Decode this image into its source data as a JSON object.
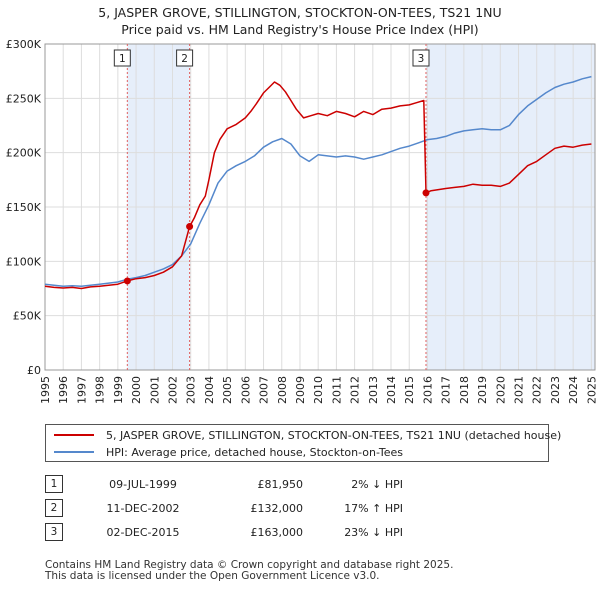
{
  "title": {
    "line1": "5, JASPER GROVE, STILLINGTON, STOCKTON-ON-TEES, TS21 1NU",
    "line2": "Price paid vs. HM Land Registry's House Price Index (HPI)"
  },
  "chart_data": {
    "type": "line",
    "title": "5, JASPER GROVE, STILLINGTON, STOCKTON-ON-TEES, TS21 1NU — Price paid vs. HM Land Registry's House Price Index (HPI)",
    "xlabel": "",
    "ylabel": "",
    "xlim": [
      1995,
      2025.2
    ],
    "ylim": [
      0,
      300000
    ],
    "y_ticks": [
      0,
      50000,
      100000,
      150000,
      200000,
      250000,
      300000
    ],
    "y_tick_labels": [
      "£0",
      "£50K",
      "£100K",
      "£150K",
      "£200K",
      "£250K",
      "£300K"
    ],
    "x_ticks": [
      1995,
      1996,
      1997,
      1998,
      1999,
      2000,
      2001,
      2002,
      2003,
      2004,
      2005,
      2006,
      2007,
      2008,
      2009,
      2010,
      2011,
      2012,
      2013,
      2014,
      2015,
      2016,
      2017,
      2018,
      2019,
      2020,
      2021,
      2022,
      2023,
      2024,
      2025
    ],
    "grid": true,
    "colors": {
      "property": "#cc0000",
      "hpi": "#5588cc",
      "shade": "#e6eefa",
      "grid": "#dddddd",
      "marker_line": "#e06060"
    },
    "shaded_ranges": [
      [
        1999.52,
        2002.94
      ],
      [
        2015.92,
        2025.2
      ]
    ],
    "series": [
      {
        "name": "5, JASPER GROVE, STILLINGTON, STOCKTON-ON-TEES, TS21 1NU (detached house)",
        "x": [
          1995,
          1995.5,
          1996,
          1996.5,
          1997,
          1997.5,
          1998,
          1998.5,
          1999,
          1999.52,
          2000,
          2000.5,
          2001,
          2001.5,
          2002,
          2002.5,
          2002.94,
          2003.2,
          2003.5,
          2003.8,
          2004,
          2004.3,
          2004.6,
          2005,
          2005.5,
          2006,
          2006.3,
          2006.6,
          2007,
          2007.3,
          2007.6,
          2007.9,
          2008.2,
          2008.5,
          2008.8,
          2009.2,
          2009.6,
          2010,
          2010.5,
          2011,
          2011.5,
          2012,
          2012.5,
          2013,
          2013.5,
          2014,
          2014.5,
          2015,
          2015.4,
          2015.8,
          2015.92,
          2016.2,
          2016.6,
          2017,
          2017.5,
          2018,
          2018.5,
          2019,
          2019.5,
          2020,
          2020.5,
          2021,
          2021.5,
          2022,
          2022.5,
          2023,
          2023.5,
          2024,
          2024.5,
          2025
        ],
        "values": [
          77000,
          76000,
          75500,
          76000,
          75000,
          76500,
          77000,
          78000,
          79000,
          81950,
          84000,
          85000,
          87000,
          90000,
          95000,
          105000,
          132000,
          140000,
          152000,
          160000,
          175000,
          200000,
          212000,
          222000,
          226000,
          232000,
          238000,
          245000,
          255000,
          260000,
          265000,
          262000,
          256000,
          248000,
          240000,
          232000,
          234000,
          236000,
          234000,
          238000,
          236000,
          233000,
          238000,
          235000,
          240000,
          241000,
          243000,
          244000,
          246000,
          248000,
          163000,
          165000,
          166000,
          167000,
          168000,
          169000,
          171000,
          170000,
          170000,
          169000,
          172000,
          180000,
          188000,
          192000,
          198000,
          204000,
          206000,
          205000,
          207000,
          208000
        ]
      },
      {
        "name": "HPI: Average price, detached house, Stockton-on-Tees",
        "x": [
          1995,
          1995.5,
          1996,
          1996.5,
          1997,
          1997.5,
          1998,
          1998.5,
          1999,
          1999.5,
          2000,
          2000.5,
          2001,
          2001.5,
          2002,
          2002.5,
          2003,
          2003.5,
          2004,
          2004.5,
          2005,
          2005.5,
          2006,
          2006.5,
          2007,
          2007.5,
          2008,
          2008.5,
          2009,
          2009.5,
          2010,
          2010.5,
          2011,
          2011.5,
          2012,
          2012.5,
          2013,
          2013.5,
          2014,
          2014.5,
          2015,
          2015.5,
          2016,
          2016.5,
          2017,
          2017.5,
          2018,
          2018.5,
          2019,
          2019.5,
          2020,
          2020.5,
          2021,
          2021.5,
          2022,
          2022.5,
          2023,
          2023.5,
          2024,
          2024.5,
          2025
        ],
        "values": [
          79000,
          78000,
          77000,
          77500,
          77000,
          78000,
          79000,
          80000,
          81000,
          83500,
          85000,
          87000,
          90000,
          93000,
          97000,
          105000,
          116000,
          135000,
          152000,
          172000,
          183000,
          188000,
          192000,
          197000,
          205000,
          210000,
          213000,
          208000,
          197000,
          192000,
          198000,
          197000,
          196000,
          197000,
          196000,
          194000,
          196000,
          198000,
          201000,
          204000,
          206000,
          209000,
          212000,
          213000,
          215000,
          218000,
          220000,
          221000,
          222000,
          221000,
          221000,
          225000,
          235000,
          243000,
          249000,
          255000,
          260000,
          263000,
          265000,
          268000,
          270000
        ]
      }
    ],
    "markers": [
      {
        "label": "1",
        "x": 1999.52,
        "y": 81950
      },
      {
        "label": "2",
        "x": 2002.94,
        "y": 132000
      },
      {
        "label": "3",
        "x": 2015.92,
        "y": 163000
      }
    ]
  },
  "legend": {
    "property_label": "5, JASPER GROVE, STILLINGTON, STOCKTON-ON-TEES, TS21 1NU (detached house)",
    "hpi_label": "HPI: Average price, detached house, Stockton-on-Tees"
  },
  "sales": [
    {
      "num": "1",
      "date": "09-JUL-1999",
      "price": "£81,950",
      "hpi": "2% ↓ HPI"
    },
    {
      "num": "2",
      "date": "11-DEC-2002",
      "price": "£132,000",
      "hpi": "17% ↑ HPI"
    },
    {
      "num": "3",
      "date": "02-DEC-2015",
      "price": "£163,000",
      "hpi": "23% ↓ HPI"
    }
  ],
  "footer": {
    "line1": "Contains HM Land Registry data © Crown copyright and database right 2025.",
    "line2": "This data is licensed under the Open Government Licence v3.0."
  }
}
